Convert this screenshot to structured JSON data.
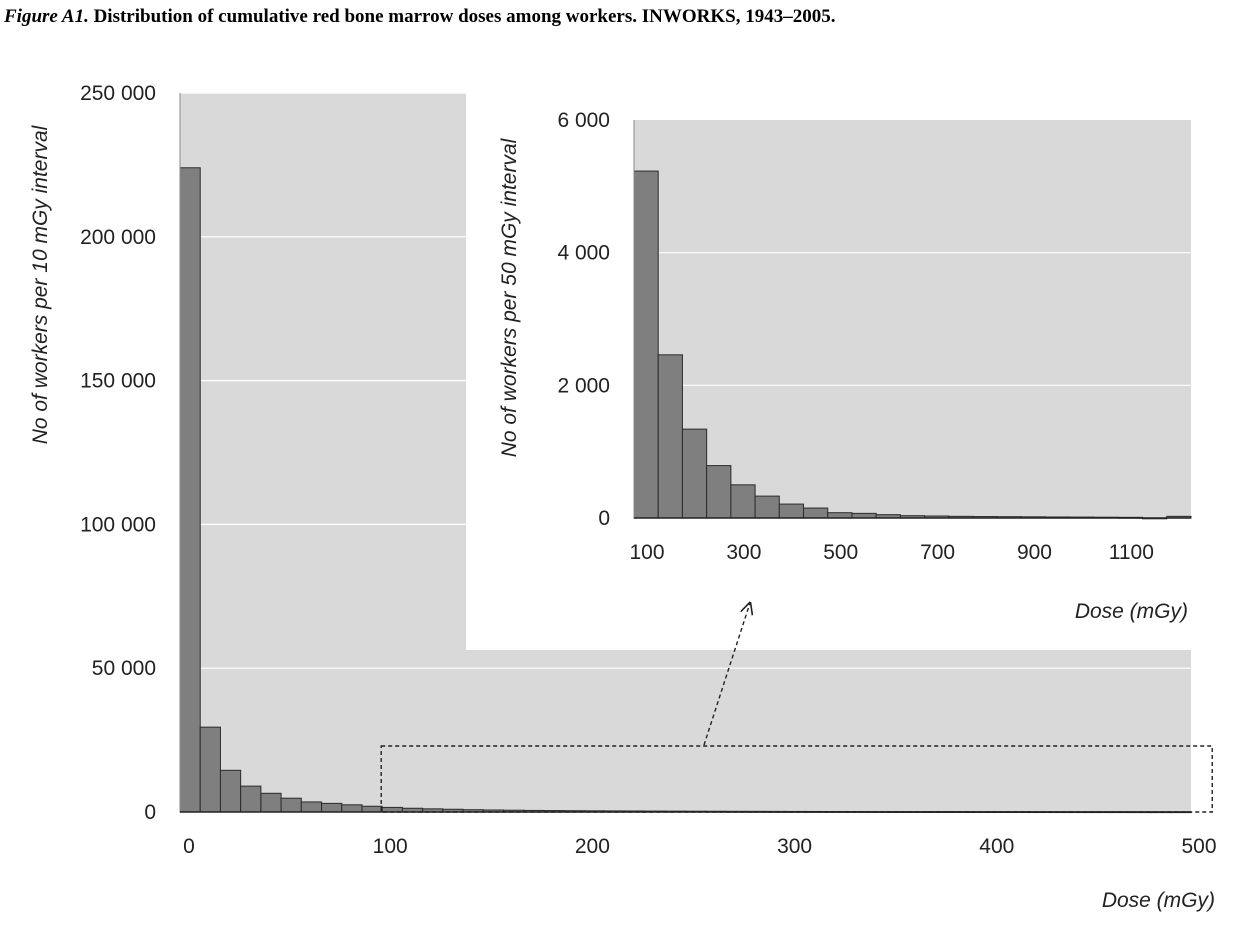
{
  "figure": {
    "label": "Figure A1.",
    "caption": "Distribution of cumulative red bone marrow doses among workers. INWORKS, 1943–2005."
  },
  "colors": {
    "plot_background": "#d9d9d9",
    "bar_fill": "#7f7f7f",
    "bar_stroke": "#2b2b2b",
    "gridline": "#ffffff"
  },
  "chart_data": [
    {
      "id": "main",
      "type": "bar",
      "xlabel": "Dose (mGy)",
      "ylabel": "No of workers per 10 mGy interval",
      "bin_width": 10,
      "xlim": [
        0,
        500
      ],
      "ylim": [
        0,
        250000
      ],
      "x_ticks": [
        0,
        100,
        200,
        300,
        400,
        500
      ],
      "x_tick_labels": [
        "0",
        "100",
        "200",
        "300",
        "400",
        "500"
      ],
      "y_ticks": [
        0,
        50000,
        100000,
        150000,
        200000,
        250000
      ],
      "y_tick_labels": [
        "0",
        "50 000",
        "100 000",
        "150 000",
        "200 000",
        "250 000"
      ],
      "grid": true,
      "bin_starts": [
        0,
        10,
        20,
        30,
        40,
        50,
        60,
        70,
        80,
        90,
        100,
        110,
        120,
        130,
        140,
        150,
        160,
        170,
        180,
        190,
        200,
        210,
        220,
        230,
        240,
        250,
        260,
        270,
        280,
        290,
        300,
        310,
        320,
        330,
        340,
        350,
        360,
        370,
        380,
        390,
        400,
        410,
        420,
        430,
        440,
        450,
        460,
        470,
        480,
        490
      ],
      "values": [
        224000,
        29500,
        14500,
        9000,
        6500,
        4800,
        3500,
        3000,
        2500,
        2000,
        1600,
        1300,
        1100,
        950,
        800,
        700,
        620,
        550,
        500,
        450,
        410,
        380,
        350,
        320,
        300,
        280,
        260,
        240,
        225,
        210,
        195,
        180,
        170,
        160,
        150,
        140,
        130,
        125,
        118,
        110,
        104,
        98,
        92,
        87,
        82,
        78,
        74,
        70,
        66,
        63
      ],
      "highlight": {
        "x_from": 100,
        "x_to": 510
      }
    },
    {
      "id": "inset",
      "type": "bar",
      "xlabel": "Dose (mGy)",
      "ylabel": "No of workers per 50 mGy interval",
      "bin_width": 50,
      "xlim": [
        100,
        1250
      ],
      "ylim": [
        0,
        6000
      ],
      "x_ticks": [
        100,
        300,
        500,
        700,
        900,
        1100
      ],
      "x_tick_labels": [
        "100",
        "300",
        "500",
        "700",
        "900",
        "1100"
      ],
      "y_ticks": [
        0,
        2000,
        4000,
        6000
      ],
      "y_tick_labels": [
        "0",
        "2 000",
        "4 000",
        "6 000"
      ],
      "grid": true,
      "bin_starts": [
        100,
        150,
        200,
        250,
        300,
        350,
        400,
        450,
        500,
        550,
        600,
        650,
        700,
        750,
        800,
        850,
        900,
        950,
        1000,
        1050,
        1100,
        1150,
        1200
      ],
      "values": [
        5230,
        2460,
        1340,
        790,
        500,
        330,
        210,
        150,
        80,
        70,
        50,
        35,
        30,
        25,
        22,
        20,
        18,
        15,
        14,
        12,
        10,
        0,
        25
      ]
    }
  ]
}
